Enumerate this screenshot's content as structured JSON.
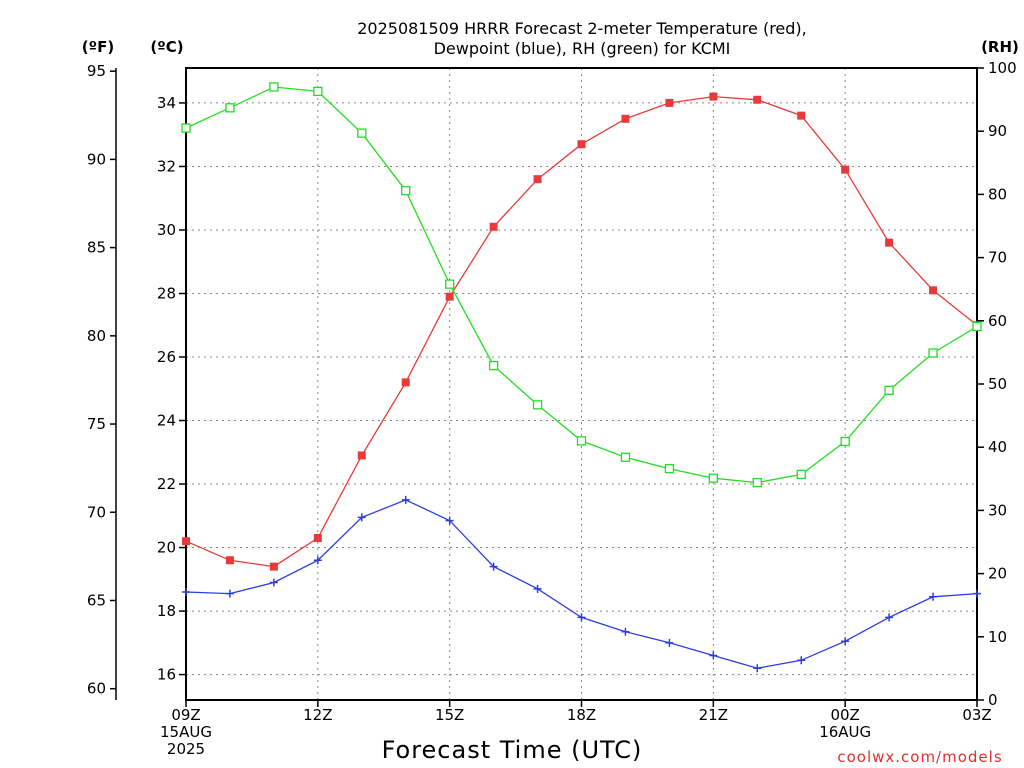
{
  "chart_data": {
    "type": "line",
    "title": [
      "2025081509 HRRR Forecast 2-meter Temperature (red),",
      "Dewpoint (blue), RH (green) for KCMI"
    ],
    "unit_labels": {
      "fahrenheit": "(ºF)",
      "celsius": "(ºC)",
      "rh": "(RH)"
    },
    "xlabel": "Forecast Time (UTC)",
    "credit": "coolwx.com/models",
    "x_hours": [
      0,
      1,
      2,
      3,
      4,
      5,
      6,
      7,
      8,
      9,
      10,
      11,
      12,
      13,
      14,
      15,
      16,
      17,
      18
    ],
    "x_ticks": [
      {
        "hour": 0,
        "lines": [
          "09Z",
          "15AUG",
          "2025"
        ]
      },
      {
        "hour": 3,
        "lines": [
          "12Z"
        ]
      },
      {
        "hour": 6,
        "lines": [
          "15Z"
        ]
      },
      {
        "hour": 9,
        "lines": [
          "18Z"
        ]
      },
      {
        "hour": 12,
        "lines": [
          "21Z"
        ]
      },
      {
        "hour": 15,
        "lines": [
          "00Z",
          "16AUG"
        ]
      },
      {
        "hour": 18,
        "lines": [
          "03Z"
        ]
      }
    ],
    "celsius_axis": {
      "ylim": [
        15.2,
        35.1
      ],
      "ticks": [
        16,
        18,
        20,
        22,
        24,
        26,
        28,
        30,
        32,
        34
      ]
    },
    "fahrenheit_axis": {
      "ylim": [
        59.36,
        95.18
      ],
      "ticks": [
        60,
        65,
        70,
        75,
        80,
        85,
        90,
        95
      ]
    },
    "rh_axis": {
      "ylim": [
        0,
        100
      ],
      "ticks": [
        0,
        10,
        20,
        30,
        40,
        50,
        60,
        70,
        80,
        90,
        100
      ]
    },
    "grid": true,
    "series": [
      {
        "name": "Temperature",
        "axis": "celsius",
        "color": "#e83a3a",
        "marker": "filled-square",
        "values": [
          20.2,
          19.6,
          19.4,
          20.3,
          22.9,
          25.2,
          27.9,
          30.1,
          31.6,
          32.7,
          33.5,
          34.0,
          34.2,
          34.1,
          33.6,
          31.9,
          29.6,
          28.1,
          27.0
        ]
      },
      {
        "name": "Dewpoint",
        "axis": "celsius",
        "color": "#2a3ee0",
        "marker": "plus",
        "values": [
          18.6,
          18.55,
          18.9,
          19.6,
          20.95,
          21.5,
          20.85,
          19.4,
          18.7,
          17.8,
          17.35,
          17.0,
          16.6,
          16.2,
          16.45,
          17.05,
          17.8,
          18.45,
          18.55
        ]
      },
      {
        "name": "RH",
        "axis": "rh",
        "color": "#22dd22",
        "marker": "open-square",
        "values": [
          90.5,
          93.7,
          97.0,
          96.3,
          89.7,
          80.6,
          65.8,
          52.9,
          46.7,
          41.0,
          38.4,
          36.6,
          35.1,
          34.4,
          35.7,
          40.9,
          49.0,
          54.9,
          59.1
        ]
      }
    ]
  }
}
